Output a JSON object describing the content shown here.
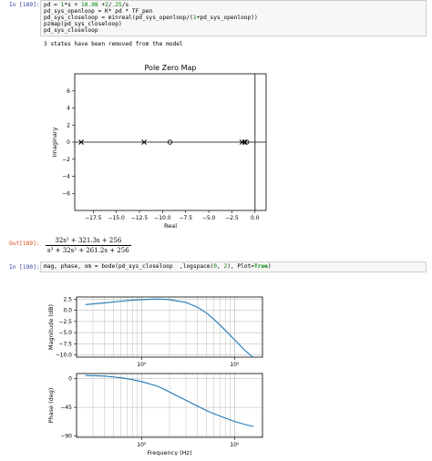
{
  "cells": [
    {
      "prompt": "In [189]:",
      "code_lines": [
        [
          {
            "t": "pd = "
          },
          {
            "t": "1",
            "c": "k-num"
          },
          {
            "t": "*s + "
          },
          {
            "t": "10.08",
            "c": "k-num"
          },
          {
            "t": " +"
          },
          {
            "t": "2",
            "c": "k-num"
          },
          {
            "t": "/"
          },
          {
            "t": ".25",
            "c": "k-num"
          },
          {
            "t": "/s"
          }
        ],
        [
          {
            "t": "pd_sys_openloop = K* pd * TF_pen"
          }
        ],
        [
          {
            "t": "pd_sys_closeloop = minreal(pd_sys_openloop/("
          },
          {
            "t": "1",
            "c": "k-num"
          },
          {
            "t": "+pd_sys_openloop))"
          }
        ],
        [
          {
            "t": "pzmap(pd_sys_closeloop)"
          }
        ],
        [
          {
            "t": "pd_sys_closeloop"
          }
        ]
      ],
      "stdout": "3 states have been removed from the model"
    },
    {
      "prompt": "Out[189]:",
      "tf_numerator": "32s² + 321.3s + 256",
      "tf_denominator": "s³ + 32s² + 261.2s + 256"
    },
    {
      "prompt": "In [190]:",
      "code_lines": [
        [
          {
            "t": "mag, phase, om = bode(pd_sys_closeloop  ,logspace("
          },
          {
            "t": "0",
            "c": "k-num"
          },
          {
            "t": ", "
          },
          {
            "t": "2",
            "c": "k-num"
          },
          {
            "t": "), Plot="
          },
          {
            "t": "True",
            "c": "k-kw"
          },
          {
            "t": ")"
          }
        ]
      ]
    }
  ],
  "chart_data": [
    {
      "type": "scatter",
      "title": "Pole Zero Map",
      "xlabel": "Real",
      "ylabel": "Imaginary",
      "xlim": [
        -19.5,
        1.2
      ],
      "ylim": [
        -8,
        8
      ],
      "xticks": [
        -17.5,
        -15.0,
        -12.5,
        -10.0,
        -7.5,
        -5.0,
        -2.5,
        0.0
      ],
      "xtick_labels": [
        "−17.5",
        "−15.0",
        "−12.5",
        "−10.0",
        "−7.5",
        "−5.0",
        "−2.5",
        "0.0"
      ],
      "yticks": [
        6,
        4,
        2,
        0,
        -2,
        -4,
        -6
      ],
      "ytick_labels": [
        "6",
        "4",
        "2",
        "0",
        "−2",
        "−4",
        "−6"
      ],
      "series": [
        {
          "marker": "x",
          "points": [
            [
              -18.8,
              0
            ],
            [
              -12.0,
              0
            ],
            [
              -1.4,
              0
            ],
            [
              -1.1,
              0
            ]
          ]
        },
        {
          "marker": "o",
          "points": [
            [
              -9.2,
              0
            ],
            [
              -0.9,
              0
            ]
          ]
        }
      ]
    },
    {
      "type": "line",
      "xlabel": "",
      "ylabel": "Magnitude (dB)",
      "xscale": "log",
      "xlim": [
        0.2,
        20
      ],
      "ylim": [
        -10.5,
        3
      ],
      "yticks": [
        2.5,
        0.0,
        -2.5,
        -5.0,
        -7.5,
        -10.0
      ],
      "ytick_labels": [
        "2.5",
        "0.0",
        "−2.5",
        "−5.0",
        "−7.5",
        "−10.0"
      ],
      "xticks": [
        1,
        10
      ],
      "xtick_labels": [
        "10⁰",
        "10¹"
      ],
      "grid": "on",
      "color": "#1f77b4",
      "x": [
        0.25,
        0.4,
        0.6,
        0.8,
        1.0,
        1.5,
        2.0,
        3.0,
        4.0,
        5.0,
        6.0,
        8.0,
        10.0,
        13.0,
        16.0
      ],
      "y": [
        1.3,
        1.7,
        2.05,
        2.3,
        2.4,
        2.55,
        2.4,
        1.8,
        0.7,
        -0.6,
        -2.0,
        -4.5,
        -6.6,
        -9.0,
        -10.6
      ]
    },
    {
      "type": "line",
      "xlabel": "Frequency (Hz)",
      "ylabel": "Phase (deg)",
      "xscale": "log",
      "xlim": [
        0.2,
        20
      ],
      "ylim": [
        -92,
        8
      ],
      "yticks": [
        0,
        -45,
        -90
      ],
      "ytick_labels": [
        "0",
        "−45",
        "−90"
      ],
      "xticks": [
        1,
        10
      ],
      "xtick_labels": [
        "10⁰",
        "10¹"
      ],
      "grid": "on",
      "color": "#1f77b4",
      "x": [
        0.25,
        0.4,
        0.6,
        0.8,
        1.0,
        1.5,
        2.0,
        3.0,
        4.0,
        5.0,
        6.0,
        8.0,
        10.0,
        13.0,
        16.0
      ],
      "y": [
        5,
        4,
        1.5,
        -1.5,
        -4.5,
        -12,
        -21,
        -34,
        -43,
        -50,
        -55,
        -62,
        -67,
        -72,
        -75
      ]
    }
  ]
}
